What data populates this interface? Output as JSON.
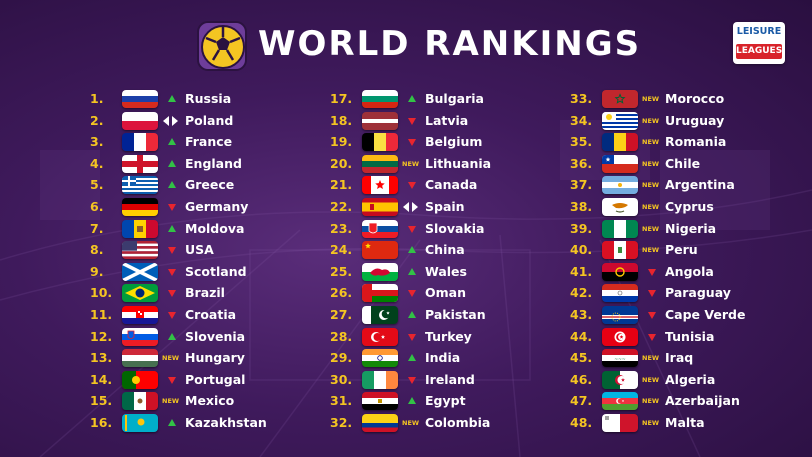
{
  "title": "WORLD RANKINGS",
  "brand": {
    "line1": "LEISURE",
    "line2": "LEAGUES"
  },
  "columns": [
    [
      {
        "rank": "1.",
        "name": "Russia",
        "flag": "russia",
        "move": "up"
      },
      {
        "rank": "2.",
        "name": "Poland",
        "flag": "poland",
        "move": "same"
      },
      {
        "rank": "3.",
        "name": "France",
        "flag": "france",
        "move": "up"
      },
      {
        "rank": "4.",
        "name": "England",
        "flag": "england",
        "move": "up"
      },
      {
        "rank": "5.",
        "name": "Greece",
        "flag": "greece",
        "move": "up"
      },
      {
        "rank": "6.",
        "name": "Germany",
        "flag": "germany",
        "move": "down"
      },
      {
        "rank": "7.",
        "name": "Moldova",
        "flag": "moldova",
        "move": "up"
      },
      {
        "rank": "8.",
        "name": "USA",
        "flag": "usa",
        "move": "down"
      },
      {
        "rank": "9.",
        "name": "Scotland",
        "flag": "scotland",
        "move": "down"
      },
      {
        "rank": "10.",
        "name": "Brazil",
        "flag": "brazil",
        "move": "down"
      },
      {
        "rank": "11.",
        "name": "Croatia",
        "flag": "croatia",
        "move": "down"
      },
      {
        "rank": "12.",
        "name": "Slovenia",
        "flag": "slovenia",
        "move": "up"
      },
      {
        "rank": "13.",
        "name": "Hungary",
        "flag": "hungary",
        "move": "new"
      },
      {
        "rank": "14.",
        "name": "Portugal",
        "flag": "portugal",
        "move": "down"
      },
      {
        "rank": "15.",
        "name": "Mexico",
        "flag": "mexico",
        "move": "new"
      },
      {
        "rank": "16.",
        "name": "Kazakhstan",
        "flag": "kazakhstan",
        "move": "up"
      }
    ],
    [
      {
        "rank": "17.",
        "name": "Bulgaria",
        "flag": "bulgaria",
        "move": "up"
      },
      {
        "rank": "18.",
        "name": "Latvia",
        "flag": "latvia",
        "move": "down"
      },
      {
        "rank": "19.",
        "name": "Belgium",
        "flag": "belgium",
        "move": "down"
      },
      {
        "rank": "20.",
        "name": "Lithuania",
        "flag": "lithuania",
        "move": "new"
      },
      {
        "rank": "21.",
        "name": "Canada",
        "flag": "canada",
        "move": "down"
      },
      {
        "rank": "22.",
        "name": "Spain",
        "flag": "spain",
        "move": "same"
      },
      {
        "rank": "23.",
        "name": "Slovakia",
        "flag": "slovakia",
        "move": "down"
      },
      {
        "rank": "24.",
        "name": "China",
        "flag": "china",
        "move": "up"
      },
      {
        "rank": "25.",
        "name": "Wales",
        "flag": "wales",
        "move": "up"
      },
      {
        "rank": "26.",
        "name": "Oman",
        "flag": "oman",
        "move": "down"
      },
      {
        "rank": "27.",
        "name": "Pakistan",
        "flag": "pakistan",
        "move": "up"
      },
      {
        "rank": "28.",
        "name": "Turkey",
        "flag": "turkey",
        "move": "down"
      },
      {
        "rank": "29.",
        "name": "India",
        "flag": "india",
        "move": "up"
      },
      {
        "rank": "30.",
        "name": "Ireland",
        "flag": "ireland",
        "move": "down"
      },
      {
        "rank": "31.",
        "name": "Egypt",
        "flag": "egypt",
        "move": "up"
      },
      {
        "rank": "32.",
        "name": "Colombia",
        "flag": "colombia",
        "move": "new"
      }
    ],
    [
      {
        "rank": "33.",
        "name": "Morocco",
        "flag": "morocco",
        "move": "new"
      },
      {
        "rank": "34.",
        "name": "Uruguay",
        "flag": "uruguay",
        "move": "new"
      },
      {
        "rank": "35.",
        "name": "Romania",
        "flag": "romania",
        "move": "new"
      },
      {
        "rank": "36.",
        "name": "Chile",
        "flag": "chile",
        "move": "new"
      },
      {
        "rank": "37.",
        "name": "Argentina",
        "flag": "argentina",
        "move": "new"
      },
      {
        "rank": "38.",
        "name": "Cyprus",
        "flag": "cyprus",
        "move": "new"
      },
      {
        "rank": "39.",
        "name": "Nigeria",
        "flag": "nigeria",
        "move": "new"
      },
      {
        "rank": "40.",
        "name": "Peru",
        "flag": "peru",
        "move": "new"
      },
      {
        "rank": "41.",
        "name": "Angola",
        "flag": "angola",
        "move": "down"
      },
      {
        "rank": "42.",
        "name": "Paraguay",
        "flag": "paraguay",
        "move": "down"
      },
      {
        "rank": "43.",
        "name": "Cape Verde",
        "flag": "cape-verde",
        "move": "down"
      },
      {
        "rank": "44.",
        "name": "Tunisia",
        "flag": "tunisia",
        "move": "down"
      },
      {
        "rank": "45.",
        "name": "Iraq",
        "flag": "iraq",
        "move": "new"
      },
      {
        "rank": "46.",
        "name": "Algeria",
        "flag": "algeria",
        "move": "new"
      },
      {
        "rank": "47.",
        "name": "Azerbaijan",
        "flag": "azerbaijan",
        "move": "new"
      },
      {
        "rank": "48.",
        "name": "Malta",
        "flag": "malta",
        "move": "new"
      }
    ]
  ],
  "new_label": "NEW",
  "colors": {
    "rank": "#f4c522",
    "up": "#32c246",
    "down": "#e8252e",
    "background": "#3f1a5c"
  }
}
